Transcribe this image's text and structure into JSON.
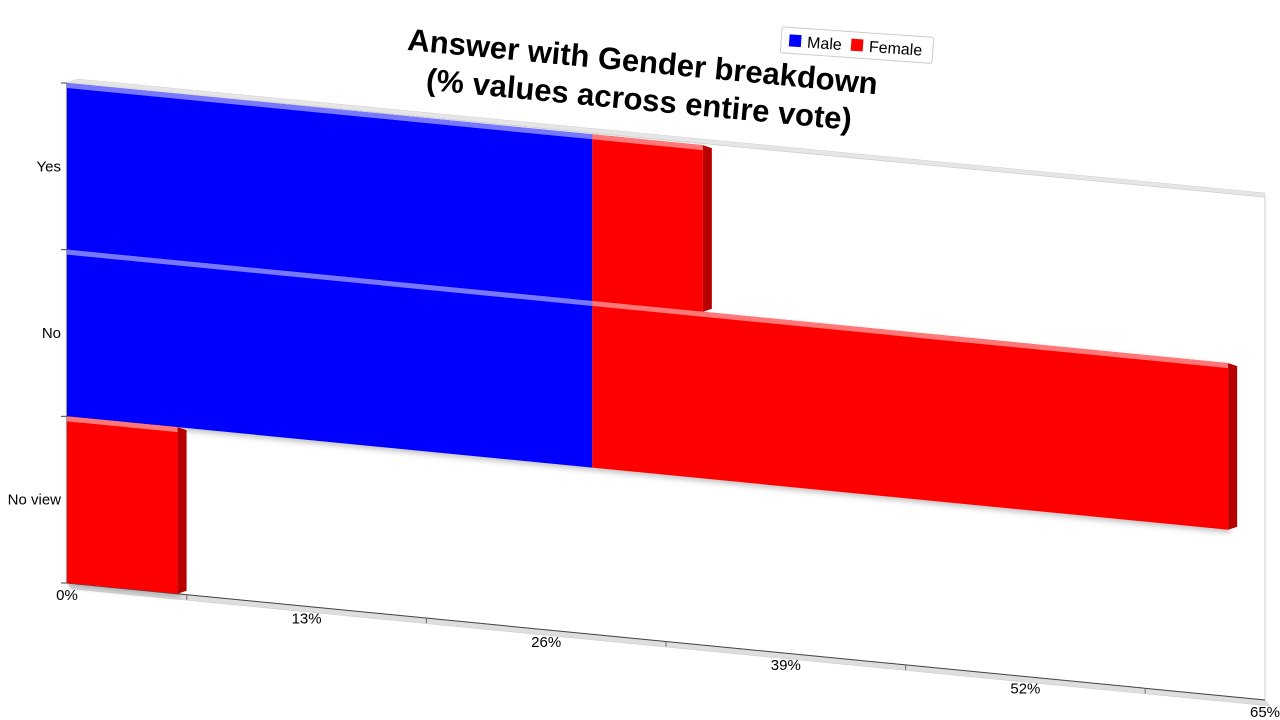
{
  "chart_data": {
    "type": "bar",
    "orientation": "horizontal",
    "stacked": true,
    "title": [
      "Answer with Gender breakdown",
      "(% values across entire vote)"
    ],
    "categories": [
      "Yes",
      "No",
      "No view"
    ],
    "series": [
      {
        "name": "Male",
        "color": "#0000ff",
        "values": [
          28.5,
          28.5,
          0
        ]
      },
      {
        "name": "Female",
        "color": "#ff0000",
        "values": [
          6,
          34.5,
          6
        ]
      }
    ],
    "xlim": [
      0,
      65
    ],
    "x_ticks": [
      "0%",
      "13%",
      "26%",
      "39%",
      "52%",
      "65%"
    ],
    "xlabel": "",
    "ylabel": "",
    "legend_position": "top-right",
    "grid": false
  }
}
